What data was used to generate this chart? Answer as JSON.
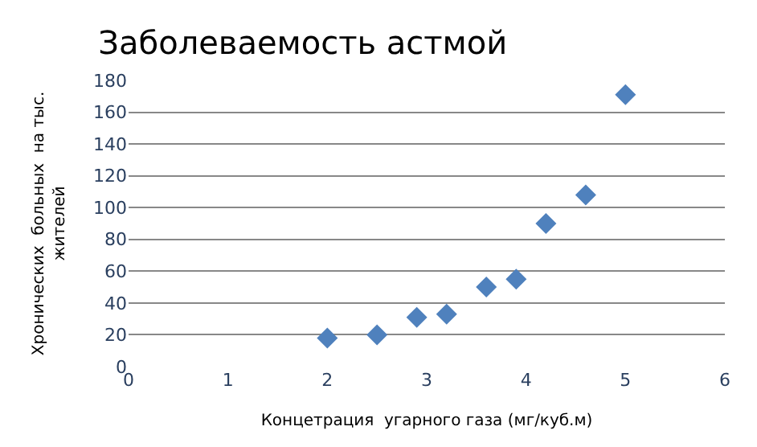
{
  "chart_data": {
    "type": "scatter",
    "title": "Заболеваемость астмой",
    "xlabel": "Концетрация  угарного газа (мг/куб.м)",
    "ylabel": "Хронических  больных  на тыс.\nжителей",
    "x": [
      2.0,
      2.5,
      2.9,
      3.2,
      3.6,
      3.9,
      4.2,
      4.6,
      5.0
    ],
    "series": [
      {
        "color": "#4f81bd",
        "values": [
          18,
          20,
          31,
          33,
          50,
          55,
          90,
          108,
          171
        ]
      }
    ],
    "xlim": [
      0,
      6
    ],
    "xticks": [
      0,
      1,
      2,
      3,
      4,
      5,
      6
    ],
    "ylim": [
      0,
      180
    ],
    "yticks": [
      0,
      20,
      40,
      60,
      80,
      100,
      120,
      140,
      160,
      180
    ],
    "grid": "y",
    "marker": "diamond",
    "legend": false
  }
}
